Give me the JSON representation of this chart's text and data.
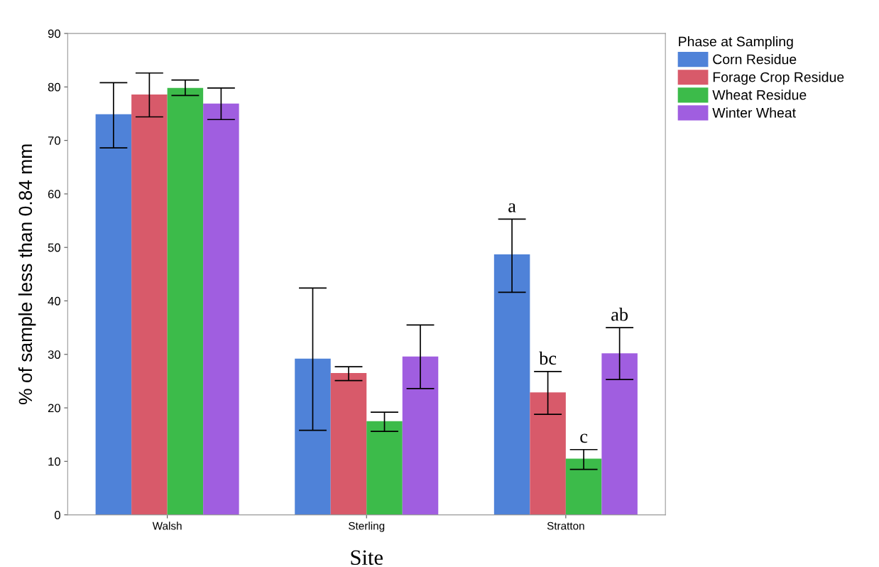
{
  "chart_data": {
    "type": "bar",
    "xlabel": "Site",
    "ylabel": "% of sample less than 0.84 mm",
    "legend_title": "Phase at Sampling",
    "legend": "top right",
    "categories": [
      "Walsh",
      "Sterling",
      "Stratton"
    ],
    "series": [
      {
        "name": "Corn Residue",
        "color": "#4f82d8",
        "values": [
          74.9,
          29.2,
          48.7
        ],
        "errors": [
          [
            68.6,
            80.8
          ],
          [
            15.8,
            42.4
          ],
          [
            41.6,
            55.3
          ]
        ],
        "value_labels": [
          null,
          null,
          "a"
        ]
      },
      {
        "name": "Forage Crop Residue",
        "color": "#d85a6a",
        "values": [
          78.6,
          26.5,
          22.9
        ],
        "errors": [
          [
            74.4,
            82.6
          ],
          [
            25.1,
            27.7
          ],
          [
            18.8,
            26.8
          ]
        ],
        "value_labels": [
          null,
          null,
          "bc"
        ]
      },
      {
        "name": "Wheat Residue",
        "color": "#3cbb4a",
        "values": [
          79.8,
          17.5,
          10.5
        ],
        "errors": [
          [
            78.4,
            81.3
          ],
          [
            15.6,
            19.2
          ],
          [
            8.5,
            12.2
          ]
        ],
        "value_labels": [
          null,
          null,
          "c"
        ]
      },
      {
        "name": "Winter Wheat",
        "color": "#a05ee0",
        "values": [
          76.9,
          29.6,
          30.2
        ],
        "errors": [
          [
            73.9,
            79.8
          ],
          [
            23.6,
            35.5
          ],
          [
            25.3,
            35.0
          ]
        ],
        "value_labels": [
          null,
          null,
          "ab"
        ]
      }
    ],
    "ylim": [
      0,
      90
    ],
    "yticks": [
      0,
      10,
      20,
      30,
      40,
      50,
      60,
      70,
      80,
      90
    ],
    "grid": false
  }
}
